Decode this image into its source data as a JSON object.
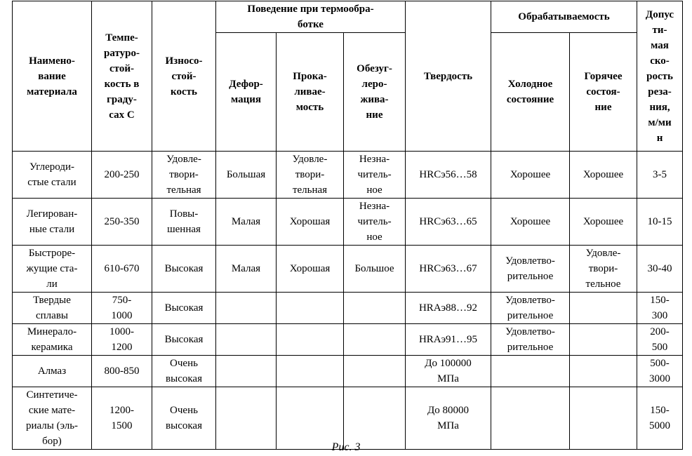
{
  "table": {
    "headers": {
      "name": "Наимено-\nвание\nматериала",
      "temp": "Темпе-\nратуро-\nстой-\nкость в\nграду-\nсах С",
      "wear": "Износо-\nстой-\nкость",
      "behavior": "Поведение при термообра-\nботке",
      "deformation": "Дефор-\nмация",
      "hardenability": "Прока-\nливае-\nмость",
      "decarb": "Обезуг-\nлеро-\nживa-\nние",
      "hardness": "Твердость",
      "machinability": "Обрабатываемость",
      "cold": "Холодное\nсостояние",
      "hot": "Горячее\nсостоя-\nние",
      "speed": "Допус\nти-\nмая\nско-\nрость\nреза-\nния,\nм/ми\nн"
    },
    "rows": [
      [
        "Углероди-\nстые стали",
        "200-250",
        "Удовле-\nтвори-\nтельная",
        "Большая",
        "Удовле-\nтвори-\nтельная",
        "Незна-\nчитель-\nное",
        "HRCэ56…58",
        "Хорошее",
        "Хорошее",
        "3-5"
      ],
      [
        "Легирован-\nные стали",
        "250-350",
        "Повы-\nшенная",
        "Малая",
        "Хорошая",
        "Незна-\nчитель-\nное",
        "HRCэ63…65",
        "Хорошее",
        "Хорошее",
        "10-15"
      ],
      [
        "Быстроре-\nжущие ста-\nли",
        "610-670",
        "Высокая",
        "Малая",
        "Хорошая",
        "Большое",
        "HRCэ63…67",
        "Удовлетво-\nрительное",
        "Удовле-\nтвори-\nтельное",
        "30-40"
      ],
      [
        "Твердые\nсплавы",
        "750-\n1000",
        "Высокая",
        "",
        "",
        "",
        "HRAэ88…92",
        "Удовлетво-\nрительное",
        "",
        "150-\n300"
      ],
      [
        "Минерало-\nкерамика",
        "1000-\n1200",
        "Высокая",
        "",
        "",
        "",
        "HRAэ91…95",
        "Удовлетво-\nрительное",
        "",
        "200-\n500"
      ],
      [
        "Алмаз",
        "800-850",
        "Очень\nвысокая",
        "",
        "",
        "",
        "До 100000\nМПа",
        "",
        "",
        "500-\n3000"
      ],
      [
        "Синтетиче-\nские мате-\nриалы (эль-\nбор)",
        "1200-\n1500",
        "Очень\nвысокая",
        "",
        "",
        "",
        "До 80000\nМПа",
        "",
        "",
        "150-\n5000"
      ]
    ]
  },
  "caption": "Рис. 3"
}
